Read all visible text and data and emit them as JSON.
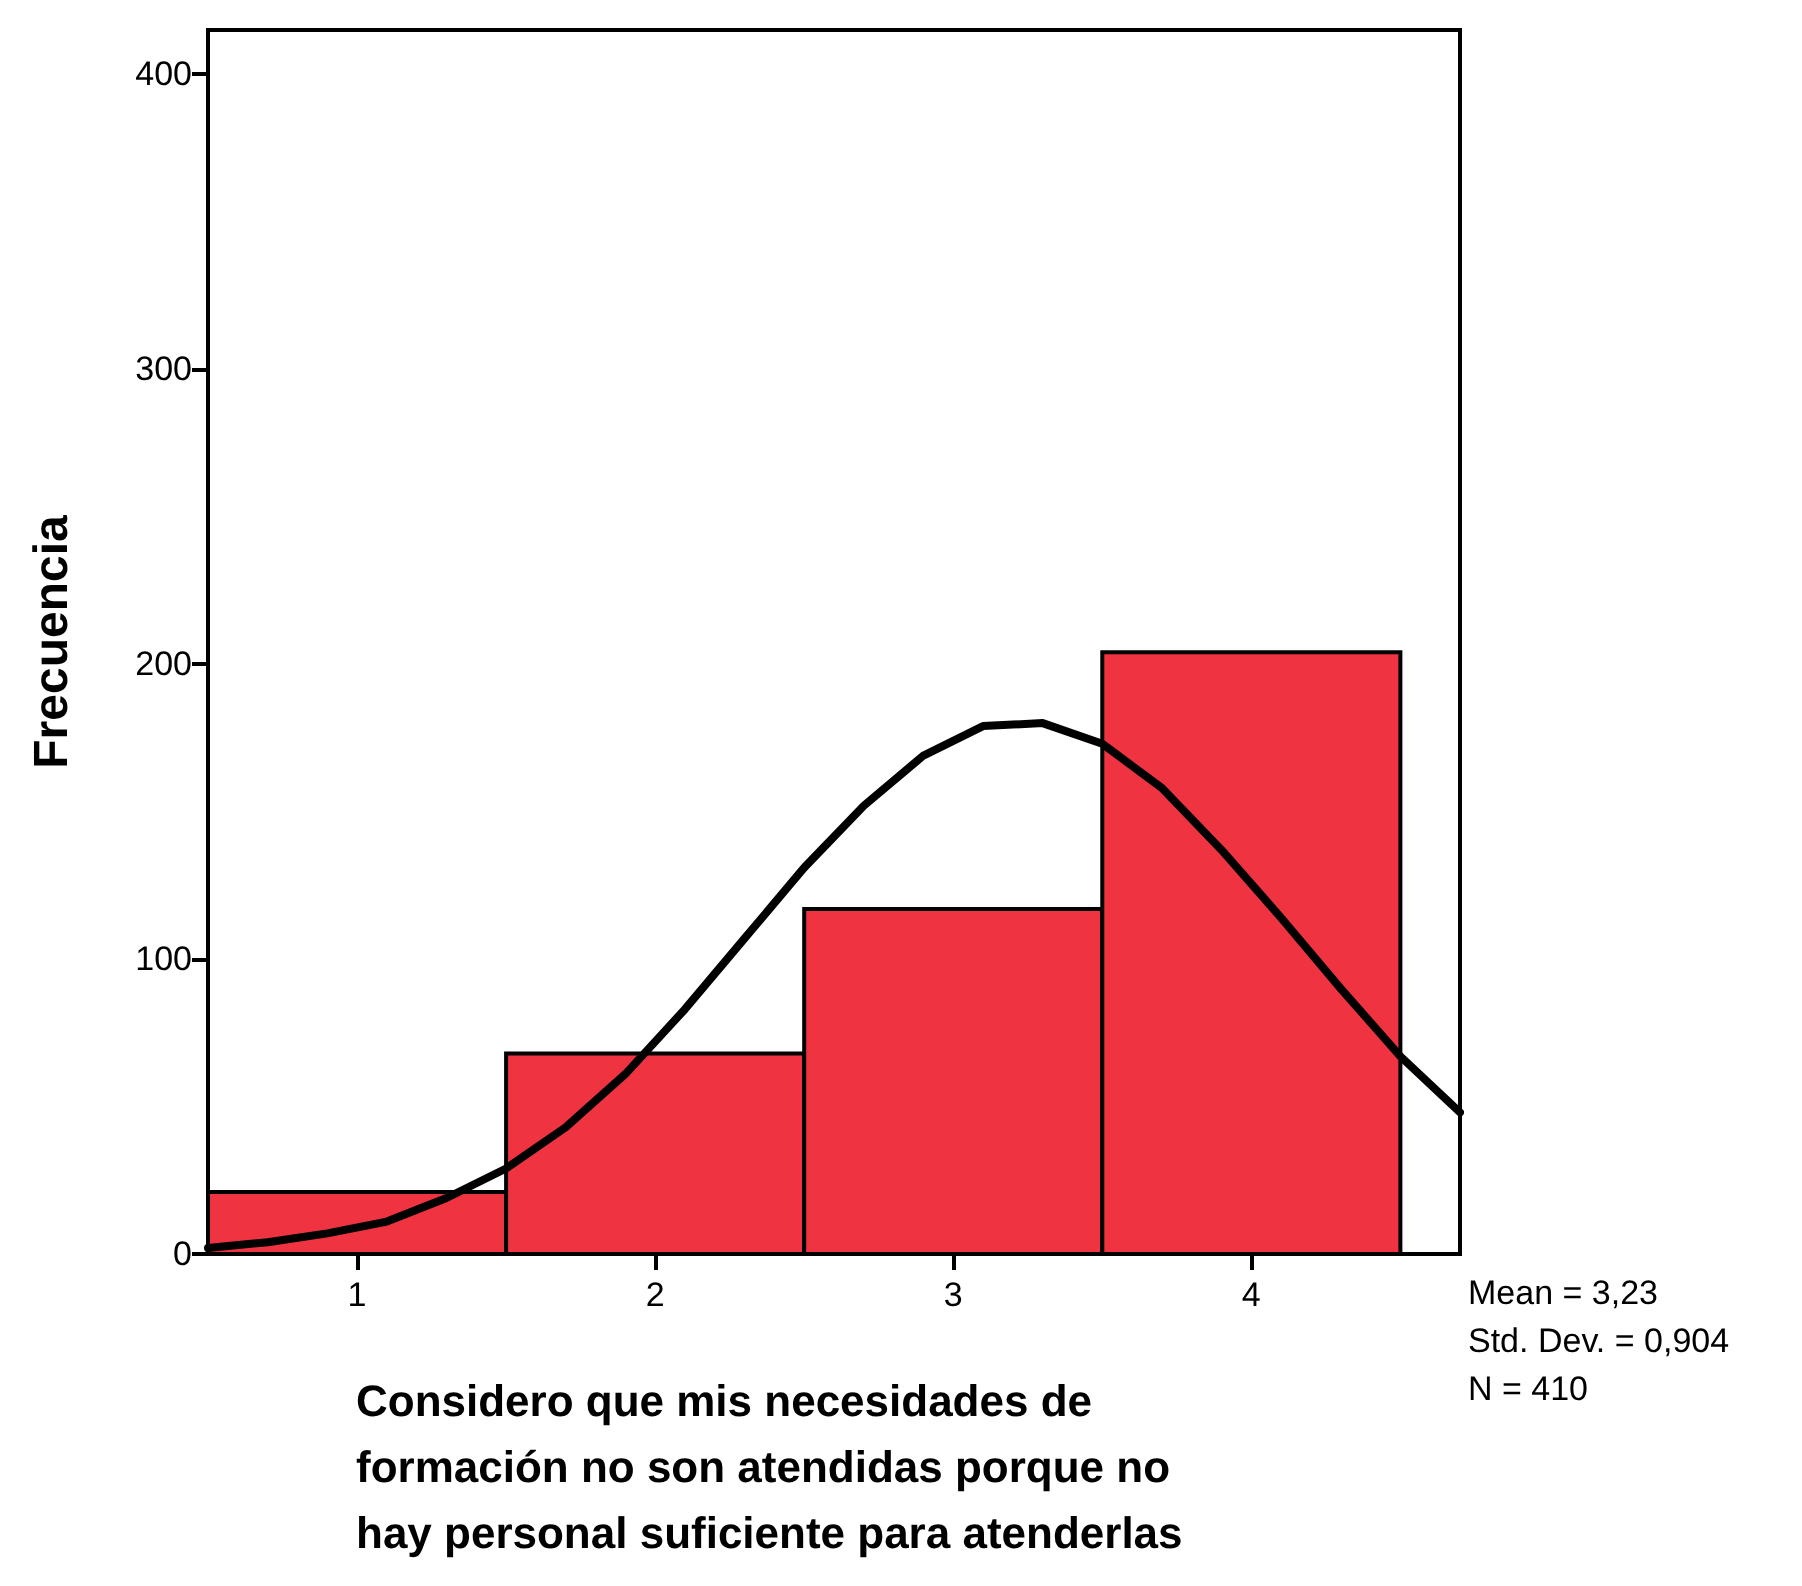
{
  "chart_data": {
    "type": "histogram",
    "xlabel": "Considero que mis necesidades de formación no son atendidas porque no hay personal suficiente para atenderlas",
    "ylabel": "Frecuencia",
    "bins": [
      0.5,
      1.5,
      2.5,
      3.5,
      4.5
    ],
    "series": [
      {
        "color": "#ef3340",
        "values": [
          21,
          68,
          117,
          204
        ]
      },
      {
        "type": "line",
        "color": "#000000",
        "x": [
          0.5,
          0.7,
          0.9,
          1.1,
          1.3,
          1.5,
          1.7,
          1.9,
          2.1,
          2.3,
          2.5,
          2.7,
          2.9,
          3.1,
          3.3,
          3.5,
          3.7,
          3.9,
          4.1,
          4.3,
          4.5,
          4.7
        ],
        "values": [
          2,
          4,
          7,
          11,
          19,
          29,
          43,
          61,
          83,
          107,
          131,
          152,
          169,
          179,
          180,
          173,
          158,
          137,
          114,
          90,
          67,
          48
        ]
      }
    ],
    "xlim": [
      0.5,
      4.7
    ],
    "xticks": [
      1,
      2,
      3,
      4
    ],
    "ylim": [
      0,
      415
    ],
    "yticks": [
      0,
      100,
      200,
      300,
      400
    ],
    "grid": false,
    "marker": "none",
    "line_style": "solid",
    "annotations": [
      "Mean = 3,23",
      "Std. Dev. = 0,904",
      "N = 410"
    ]
  }
}
